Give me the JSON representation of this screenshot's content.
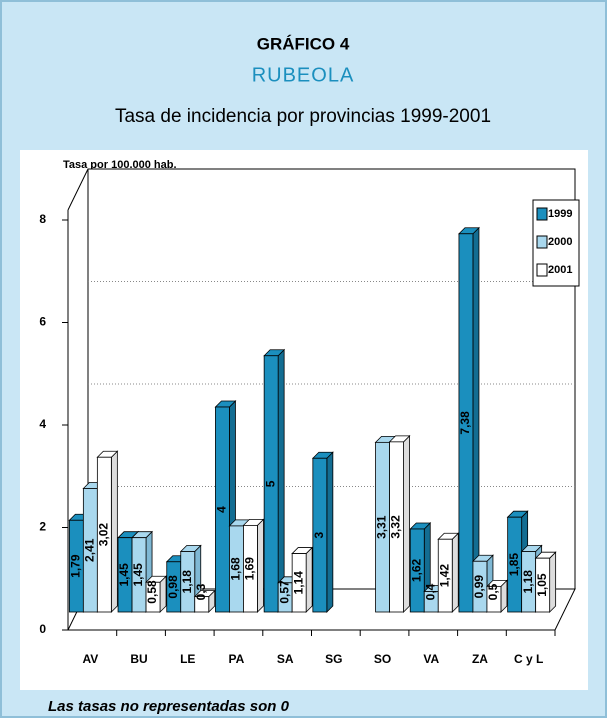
{
  "chart_data": {
    "type": "bar3d",
    "title": "GRÁFICO 4",
    "subtitle": "RUBEOLA",
    "chart_title": "Tasa de incidencia por provincias 1999-2001",
    "y_label": "Tasa por 100.000 hab.",
    "note": "Las tasas no representadas son 0",
    "categories": [
      "AV",
      "BU",
      "LE",
      "PA",
      "SA",
      "SG",
      "SO",
      "VA",
      "ZA",
      "C y L"
    ],
    "series": [
      {
        "name": "1999",
        "color": "#1b8fbe",
        "values": [
          1.79,
          1.45,
          0.98,
          4,
          5,
          3,
          null,
          1.62,
          7.38,
          1.85
        ],
        "value_labels": [
          "1,79",
          "1,45",
          "0,98",
          "4",
          "5",
          "3",
          null,
          "1,62",
          "7,38",
          "1,85"
        ]
      },
      {
        "name": "2000",
        "color": "#a9d8ee",
        "values": [
          2.41,
          1.45,
          1.18,
          1.68,
          0.57,
          null,
          3.31,
          0.4,
          0.99,
          1.18
        ],
        "value_labels": [
          "2,41",
          "1,45",
          "1,18",
          "1,68",
          "0,57",
          null,
          "3,31",
          "0,4",
          "0,99",
          "1,18"
        ]
      },
      {
        "name": "2001",
        "color": "#ffffff",
        "values": [
          3.02,
          0.58,
          0.3,
          1.69,
          1.14,
          null,
          3.32,
          1.42,
          0.5,
          1.05
        ],
        "value_labels": [
          "3,02",
          "0,58",
          "0,3",
          "1,69",
          "1,14",
          null,
          "3,32",
          "1,42",
          "0,5",
          "1,05"
        ]
      }
    ],
    "ylim": [
      0,
      8
    ],
    "yticks": [
      0,
      2,
      4,
      6,
      8
    ],
    "grid": true,
    "legend": "top-right"
  }
}
